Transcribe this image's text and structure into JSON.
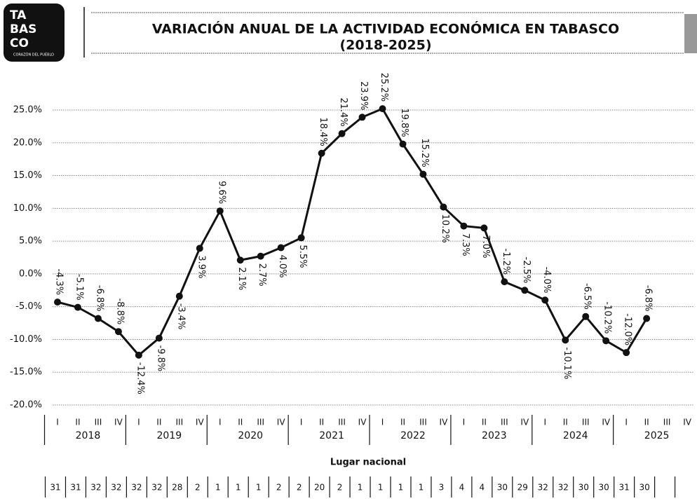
{
  "chart_data": {
    "type": "line",
    "logo": [
      "TA",
      "BAS",
      "CO"
    ],
    "logo_caption": "CORAZÓN DEL PUEBLO",
    "title": "VARIACIÓN ANUAL DE LA ACTIVIDAD ECONÓMICA EN TABASCO",
    "subtitle": "(2018-2025)",
    "categories": [
      "I",
      "II",
      "III",
      "IV",
      "I",
      "II",
      "III",
      "IV",
      "I",
      "II",
      "III",
      "IV",
      "I",
      "II",
      "III",
      "IV",
      "I",
      "II",
      "III",
      "IV",
      "I",
      "II",
      "III",
      "IV",
      "I",
      "II",
      "III",
      "IV",
      "I",
      "II",
      "III",
      "IV"
    ],
    "years": [
      "2018",
      "2019",
      "2020",
      "2021",
      "2022",
      "2023",
      "2024",
      "2025"
    ],
    "series": [
      {
        "color": "#111111",
        "values": [
          -4.3,
          -5.1,
          -6.8,
          -8.8,
          -12.4,
          -9.8,
          -3.4,
          3.9,
          9.6,
          2.1,
          2.7,
          4.0,
          5.5,
          18.4,
          21.4,
          23.9,
          25.2,
          19.8,
          15.2,
          10.2,
          7.3,
          7.0,
          -1.2,
          -2.5,
          -4.0,
          -10.1,
          -6.5,
          -10.2,
          -12.0,
          -6.8,
          null,
          null
        ],
        "value_labels": [
          "-4.3%",
          "-5.1%",
          "-6.8%",
          "-8.8%",
          "-12.4%",
          "-9.8%",
          "-3.4%",
          "3.9%",
          "9.6%",
          "2.1%",
          "2.7%",
          "4.0%",
          "5.5%",
          "18.4%",
          "21.4%",
          "23.9%",
          "25.2%",
          "19.8%",
          "15.2%",
          "10.2%",
          "7.3%",
          "7.0%",
          "-1.2%",
          "-2.5%",
          "-4.0%",
          "-10.1%",
          "-6.5%",
          "-10.2%",
          "-12.0%",
          "-6.8%",
          null,
          null
        ]
      }
    ],
    "ylim": [
      -20,
      25
    ],
    "yticks": [
      {
        "value": -20,
        "label": "-20.0%"
      },
      {
        "value": -15,
        "label": "-15.0%"
      },
      {
        "value": -10,
        "label": "-10.0%"
      },
      {
        "value": -5,
        "label": "-5.0%"
      },
      {
        "value": 0,
        "label": "0.0%"
      },
      {
        "value": 5,
        "label": "5.0%"
      },
      {
        "value": 10,
        "label": "10.0%"
      },
      {
        "value": 15,
        "label": "15.0%"
      },
      {
        "value": 20,
        "label": "20.0%"
      },
      {
        "value": 25,
        "label": "25.0%"
      }
    ],
    "grid": true,
    "ranking_label": "Lugar nacional",
    "ranking": [
      31,
      31,
      32,
      32,
      32,
      32,
      28,
      2,
      1,
      1,
      1,
      2,
      2,
      20,
      2,
      1,
      1,
      1,
      1,
      3,
      4,
      4,
      30,
      29,
      32,
      32,
      30,
      30,
      31,
      30,
      null,
      null
    ]
  }
}
